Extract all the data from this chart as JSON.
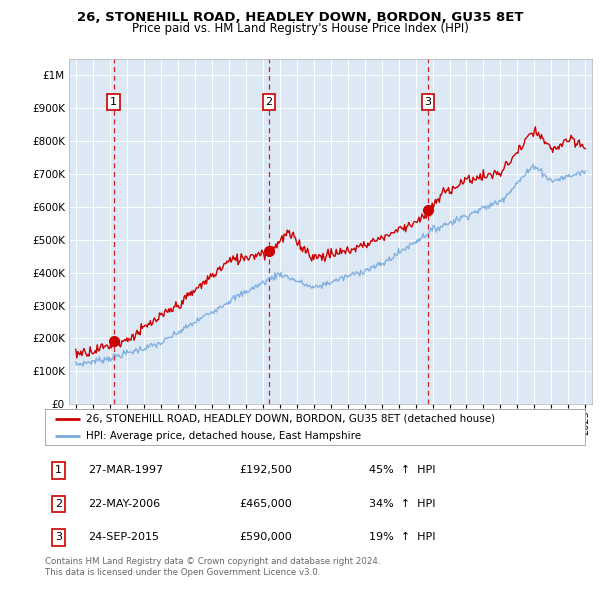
{
  "title": "26, STONEHILL ROAD, HEADLEY DOWN, BORDON, GU35 8ET",
  "subtitle": "Price paid vs. HM Land Registry's House Price Index (HPI)",
  "plot_bg_color": "#dce9f5",
  "ylim": [
    0,
    1050000
  ],
  "yticks": [
    0,
    100000,
    200000,
    300000,
    400000,
    500000,
    600000,
    700000,
    800000,
    900000,
    1000000
  ],
  "ytick_labels": [
    "£0",
    "£100K",
    "£200K",
    "£300K",
    "£400K",
    "£500K",
    "£600K",
    "£700K",
    "£800K",
    "£900K",
    "£1M"
  ],
  "xlim_start": 1994.6,
  "xlim_end": 2025.4,
  "xtick_years": [
    1995,
    1996,
    1997,
    1998,
    1999,
    2000,
    2001,
    2002,
    2003,
    2004,
    2005,
    2006,
    2007,
    2008,
    2009,
    2010,
    2011,
    2012,
    2013,
    2014,
    2015,
    2016,
    2017,
    2018,
    2019,
    2020,
    2021,
    2022,
    2023,
    2024,
    2025
  ],
  "sale_color": "#cc0000",
  "hpi_color": "#7aaadd",
  "dashed_line_color": "#cc0000",
  "transactions": [
    {
      "num": 1,
      "date": "27-MAR-1997",
      "price": 192500,
      "year": 1997.23,
      "pct": "45%",
      "dir": "↑"
    },
    {
      "num": 2,
      "date": "22-MAY-2006",
      "price": 465000,
      "year": 2006.38,
      "pct": "34%",
      "dir": "↑"
    },
    {
      "num": 3,
      "date": "24-SEP-2015",
      "price": 590000,
      "year": 2015.73,
      "pct": "19%",
      "dir": "↑"
    }
  ],
  "legend_line1": "26, STONEHILL ROAD, HEADLEY DOWN, BORDON, GU35 8ET (detached house)",
  "legend_line2": "HPI: Average price, detached house, East Hampshire",
  "footer1": "Contains HM Land Registry data © Crown copyright and database right 2024.",
  "footer2": "This data is licensed under the Open Government Licence v3.0."
}
